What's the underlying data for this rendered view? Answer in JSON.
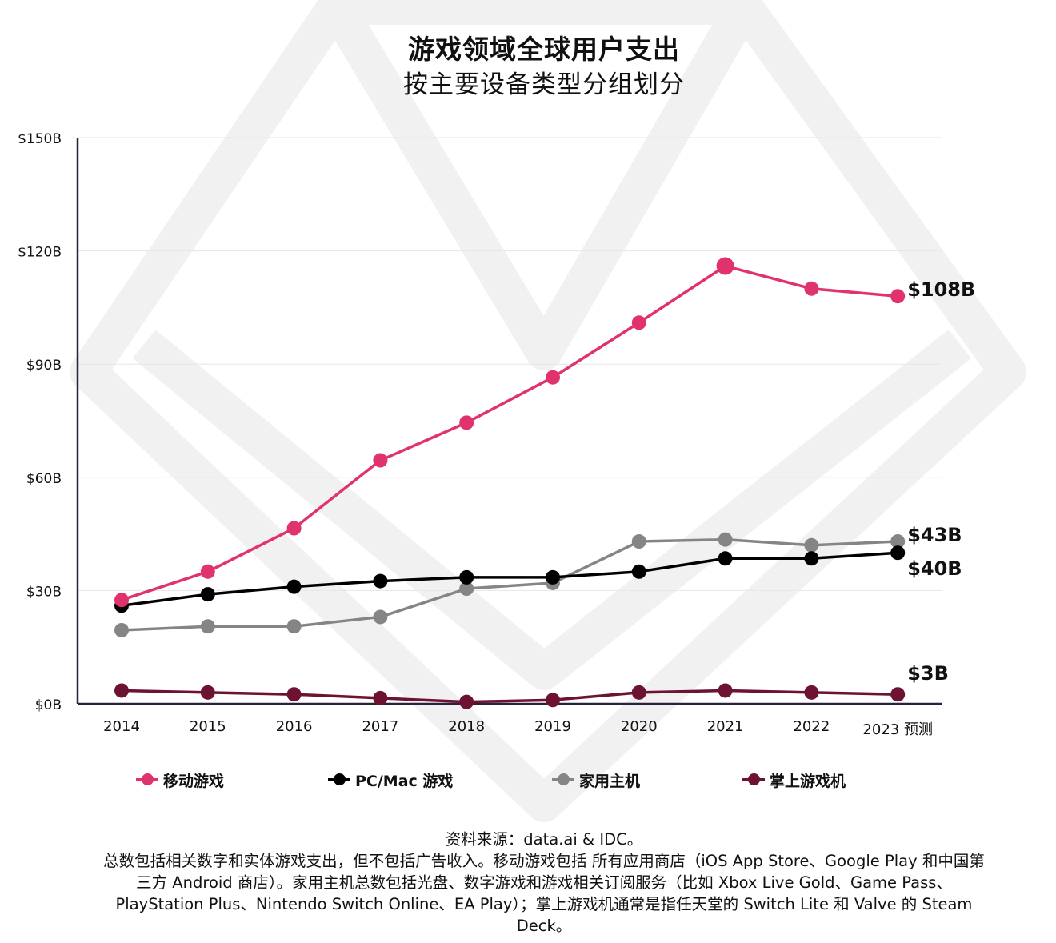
{
  "header": {
    "title": "游戏领域全球用户支出",
    "subtitle": "按主要设备类型分组划分"
  },
  "chart_data": {
    "type": "line",
    "title": "游戏领域全球用户支出",
    "subtitle": "按主要设备类型分组划分",
    "xlabel": "",
    "ylabel": "",
    "categories": [
      "2014",
      "2015",
      "2016",
      "2017",
      "2018",
      "2019",
      "2020",
      "2021",
      "2022",
      "2023 预测"
    ],
    "y_ticks": [
      "$0B",
      "$30B",
      "$60B",
      "$90B",
      "$120B",
      "$150B"
    ],
    "ylim": [
      0,
      150
    ],
    "grid": true,
    "legend_position": "bottom",
    "series": [
      {
        "name": "移动游戏",
        "color": "#e0336e",
        "values": [
          27.5,
          35,
          46.5,
          64.5,
          74.5,
          86.5,
          101,
          116,
          110,
          108
        ],
        "end_label": "$108B"
      },
      {
        "name": "PC/Mac 游戏",
        "color": "#000000",
        "values": [
          26,
          29,
          31,
          32.5,
          33.5,
          33.5,
          35,
          38.5,
          38.5,
          40
        ],
        "end_label": "$40B"
      },
      {
        "name": "家用主机",
        "color": "#858585",
        "values": [
          19.5,
          20.5,
          20.5,
          23,
          30.5,
          32,
          43,
          43.5,
          42,
          43
        ],
        "end_label": "$43B"
      },
      {
        "name": "掌上游戏机",
        "color": "#6e1232",
        "values": [
          3.5,
          3,
          2.5,
          1.5,
          0.5,
          1,
          3,
          3.5,
          3,
          2.5
        ],
        "end_label": "$3B"
      }
    ]
  },
  "notes": {
    "line1": "资料来源：data.ai & IDC。",
    "line2": "总数包括相关数字和实体游戏支出，但不包括广告收入。移动游戏包括 所有应用商店（iOS App Store、Google Play 和中国第三方 Android 商店）。家用主机总数包括光盘、数字游戏和游戏相关订阅服务（比如 Xbox Live Gold、Game Pass、PlayStation Plus、Nintendo Switch Online、EA Play）；掌上游戏机通常是指任天堂的 Switch Lite 和 Valve 的 Steam Deck。"
  }
}
